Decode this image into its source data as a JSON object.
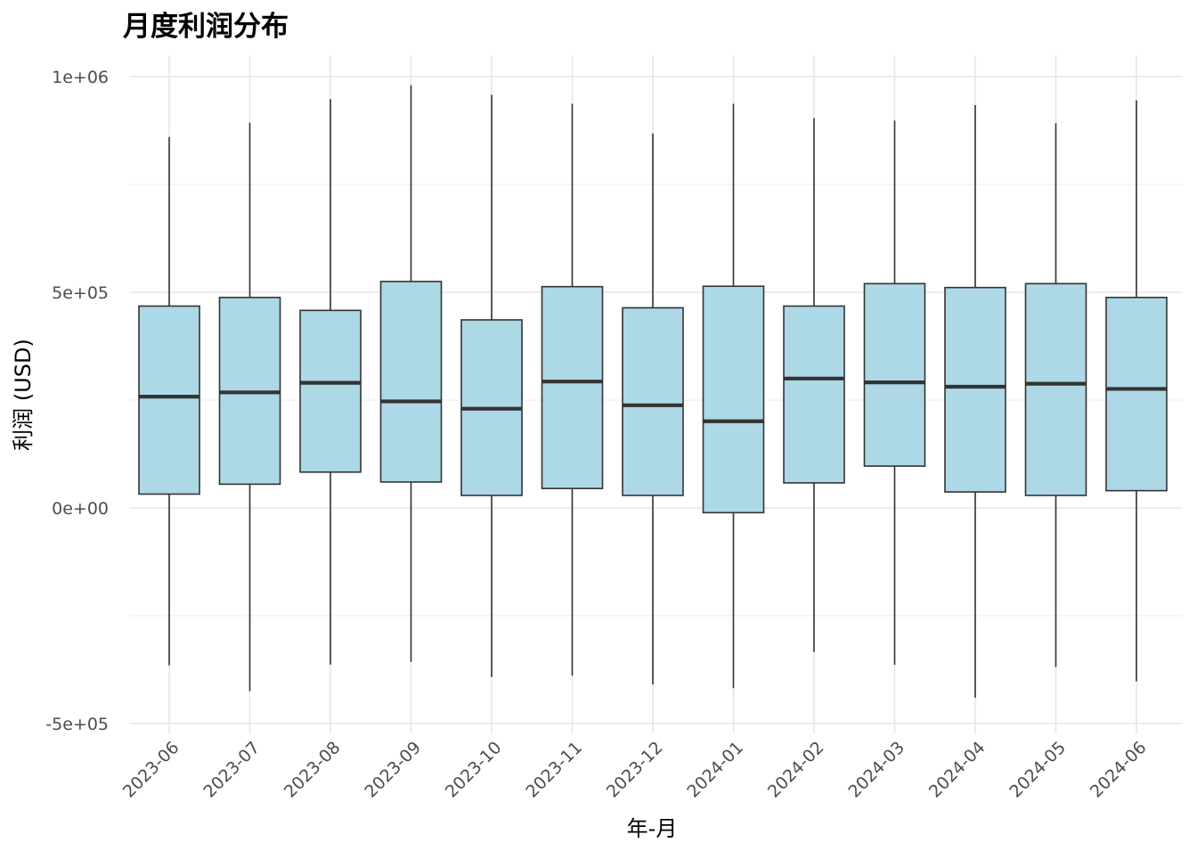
{
  "chart_data": {
    "type": "boxplot",
    "title": "月度利润分布",
    "xlabel": "年-月",
    "ylabel": "利润 (USD)",
    "ylim": [
      -500000,
      1000000
    ],
    "yticks": [
      {
        "value": -500000,
        "label": "-5e+05"
      },
      {
        "value": 0,
        "label": "0e+00"
      },
      {
        "value": 500000,
        "label": "5e+05"
      },
      {
        "value": 1000000,
        "label": "1e+06"
      }
    ],
    "grid": true,
    "box_fill": "#add8e6",
    "box_stroke": "#333333",
    "categories": [
      "2023-06",
      "2023-07",
      "2023-08",
      "2023-09",
      "2023-10",
      "2023-11",
      "2023-12",
      "2024-01",
      "2024-02",
      "2024-03",
      "2024-04",
      "2024-05",
      "2024-06"
    ],
    "boxes": [
      {
        "min": -365000,
        "q1": 32000,
        "median": 258000,
        "q3": 468000,
        "max": 860000
      },
      {
        "min": -425000,
        "q1": 55000,
        "median": 268000,
        "q3": 488000,
        "max": 893000
      },
      {
        "min": -363000,
        "q1": 83000,
        "median": 290000,
        "q3": 458000,
        "max": 948000
      },
      {
        "min": -357000,
        "q1": 60000,
        "median": 247000,
        "q3": 525000,
        "max": 980000
      },
      {
        "min": -392000,
        "q1": 29000,
        "median": 230000,
        "q3": 436000,
        "max": 958000
      },
      {
        "min": -389000,
        "q1": 45000,
        "median": 293000,
        "q3": 513000,
        "max": 937000
      },
      {
        "min": -409000,
        "q1": 29000,
        "median": 238000,
        "q3": 464000,
        "max": 868000
      },
      {
        "min": -418000,
        "q1": -11000,
        "median": 201000,
        "q3": 514000,
        "max": 937000
      },
      {
        "min": -334000,
        "q1": 58000,
        "median": 300000,
        "q3": 468000,
        "max": 904000
      },
      {
        "min": -364000,
        "q1": 97000,
        "median": 291000,
        "q3": 520000,
        "max": 898000
      },
      {
        "min": -440000,
        "q1": 37000,
        "median": 281000,
        "q3": 511000,
        "max": 934000
      },
      {
        "min": -369000,
        "q1": 29000,
        "median": 288000,
        "q3": 520000,
        "max": 892000
      },
      {
        "min": -402000,
        "q1": 40000,
        "median": 276000,
        "q3": 488000,
        "max": 945000
      }
    ]
  }
}
